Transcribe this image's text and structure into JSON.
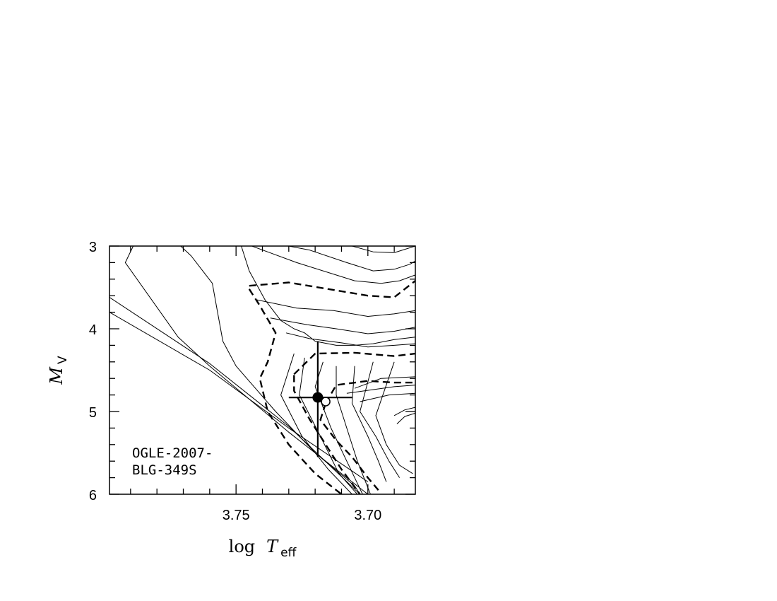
{
  "chart_data": {
    "type": "line",
    "title": "",
    "xlabel": "log T_eff",
    "ylabel": "M_V",
    "xlabel_parts": {
      "pre": "log",
      "var": "T",
      "sub": "eff"
    },
    "ylabel_parts": {
      "var": "M",
      "sub": "V"
    },
    "xlim": [
      3.798,
      3.682
    ],
    "ylim": [
      6,
      3
    ],
    "x_reversed": true,
    "y_reversed": true,
    "x_ticks": [
      {
        "v": 3.75,
        "label": "3.75"
      },
      {
        "v": 3.7,
        "label": "3.70"
      }
    ],
    "y_ticks": [
      {
        "v": 3,
        "label": "3"
      },
      {
        "v": 4,
        "label": "4"
      },
      {
        "v": 5,
        "label": "5"
      },
      {
        "v": 6,
        "label": "6"
      }
    ],
    "x_minor_step": 0.01,
    "y_minor_step": 0.2,
    "grid": false,
    "annotation": [
      "OGLE-2007-",
      "BLG-349S"
    ],
    "target": {
      "x": 3.719,
      "y": 4.83,
      "x_err": [
        3.73,
        3.706
      ],
      "y_err": [
        4.15,
        5.55
      ],
      "open_marker": {
        "x": 3.716,
        "y": 4.88
      }
    },
    "series": [
      {
        "style": "solid",
        "points": [
          [
            3.798,
            3.8
          ],
          [
            3.76,
            4.5
          ],
          [
            3.73,
            5.2
          ],
          [
            3.7,
            5.85
          ]
        ]
      },
      {
        "style": "solid",
        "points": [
          [
            3.798,
            3.62
          ],
          [
            3.76,
            4.42
          ],
          [
            3.73,
            5.18
          ],
          [
            3.703,
            6.0
          ]
        ]
      },
      {
        "style": "solid",
        "points": [
          [
            3.789,
            3.0
          ],
          [
            3.792,
            3.2
          ],
          [
            3.772,
            4.1
          ],
          [
            3.76,
            4.45
          ],
          [
            3.73,
            5.25
          ],
          [
            3.7,
            6.0
          ]
        ]
      },
      {
        "style": "solid",
        "points": [
          [
            3.771,
            3.0
          ],
          [
            3.767,
            3.12
          ],
          [
            3.759,
            3.45
          ],
          [
            3.757,
            3.8
          ],
          [
            3.755,
            4.15
          ],
          [
            3.75,
            4.45
          ],
          [
            3.735,
            5.0
          ],
          [
            3.72,
            5.5
          ],
          [
            3.705,
            5.9
          ],
          [
            3.703,
            6.0
          ]
        ]
      },
      {
        "style": "solid",
        "points": [
          [
            3.748,
            3.0
          ],
          [
            3.745,
            3.3
          ],
          [
            3.739,
            3.65
          ],
          [
            3.733,
            3.9
          ],
          [
            3.728,
            4.0
          ],
          [
            3.724,
            4.05
          ],
          [
            3.72,
            4.15
          ],
          [
            3.712,
            4.2
          ],
          [
            3.705,
            4.2
          ],
          [
            3.698,
            4.18
          ],
          [
            3.69,
            4.13
          ],
          [
            3.682,
            4.1
          ]
        ]
      },
      {
        "style": "solid",
        "points": [
          [
            3.706,
            3.0
          ],
          [
            3.698,
            3.07
          ],
          [
            3.69,
            3.08
          ],
          [
            3.682,
            3.0
          ]
        ]
      },
      {
        "style": "solid",
        "points": [
          [
            3.73,
            3.0
          ],
          [
            3.722,
            3.05
          ],
          [
            3.708,
            3.2
          ],
          [
            3.698,
            3.3
          ],
          [
            3.69,
            3.28
          ],
          [
            3.684,
            3.22
          ],
          [
            3.682,
            3.18
          ]
        ]
      },
      {
        "style": "solid",
        "points": [
          [
            3.744,
            3.0
          ],
          [
            3.727,
            3.2
          ],
          [
            3.705,
            3.42
          ],
          [
            3.695,
            3.45
          ],
          [
            3.688,
            3.42
          ],
          [
            3.682,
            3.35
          ]
        ]
      },
      {
        "style": "solid",
        "points": [
          [
            3.742,
            3.65
          ],
          [
            3.727,
            3.75
          ],
          [
            3.713,
            3.78
          ],
          [
            3.7,
            3.85
          ],
          [
            3.69,
            3.82
          ],
          [
            3.682,
            3.78
          ]
        ]
      },
      {
        "style": "solid",
        "points": [
          [
            3.737,
            3.87
          ],
          [
            3.723,
            3.95
          ],
          [
            3.712,
            4.0
          ],
          [
            3.7,
            4.06
          ],
          [
            3.69,
            4.03
          ],
          [
            3.682,
            3.98
          ]
        ]
      },
      {
        "style": "solid",
        "points": [
          [
            3.731,
            4.05
          ],
          [
            3.722,
            4.12
          ],
          [
            3.71,
            4.17
          ],
          [
            3.7,
            4.22
          ],
          [
            3.69,
            4.2
          ],
          [
            3.682,
            4.18
          ]
        ]
      },
      {
        "style": "solid",
        "points": [
          [
            3.728,
            4.3
          ],
          [
            3.733,
            4.8
          ],
          [
            3.725,
            5.3
          ],
          [
            3.715,
            5.7
          ],
          [
            3.706,
            6.0
          ]
        ]
      },
      {
        "style": "solid",
        "points": [
          [
            3.724,
            4.35
          ],
          [
            3.726,
            4.8
          ],
          [
            3.718,
            5.3
          ],
          [
            3.711,
            5.75
          ],
          [
            3.704,
            6.0
          ]
        ]
      },
      {
        "style": "solid",
        "points": [
          [
            3.717,
            4.4
          ],
          [
            3.72,
            4.7
          ],
          [
            3.714,
            5.2
          ],
          [
            3.708,
            5.6
          ],
          [
            3.702,
            6.0
          ]
        ]
      },
      {
        "style": "solid",
        "points": [
          [
            3.712,
            4.45
          ],
          [
            3.712,
            4.8
          ],
          [
            3.708,
            5.2
          ],
          [
            3.704,
            5.6
          ],
          [
            3.699,
            6.0
          ]
        ]
      },
      {
        "style": "solid",
        "points": [
          [
            3.705,
            4.45
          ],
          [
            3.706,
            4.9
          ],
          [
            3.7,
            5.3
          ],
          [
            3.696,
            5.6
          ],
          [
            3.693,
            5.85
          ]
        ]
      },
      {
        "style": "solid",
        "points": [
          [
            3.698,
            4.4
          ],
          [
            3.703,
            5.0
          ],
          [
            3.697,
            5.3
          ],
          [
            3.692,
            5.6
          ],
          [
            3.688,
            5.8
          ]
        ]
      },
      {
        "style": "solid",
        "points": [
          [
            3.69,
            4.4
          ],
          [
            3.697,
            5.05
          ],
          [
            3.693,
            5.4
          ],
          [
            3.688,
            5.65
          ],
          [
            3.683,
            5.75
          ]
        ]
      },
      {
        "style": "solid",
        "points": [
          [
            3.708,
            4.78
          ],
          [
            3.69,
            4.7
          ],
          [
            3.682,
            4.68
          ]
        ]
      },
      {
        "style": "solid",
        "points": [
          [
            3.705,
            4.72
          ],
          [
            3.695,
            4.6
          ],
          [
            3.682,
            4.58
          ]
        ]
      },
      {
        "style": "solid",
        "points": [
          [
            3.703,
            4.88
          ],
          [
            3.692,
            4.8
          ],
          [
            3.682,
            4.78
          ]
        ]
      },
      {
        "style": "solid",
        "points": [
          [
            3.69,
            5.05
          ],
          [
            3.686,
            4.98
          ],
          [
            3.682,
            4.95
          ]
        ]
      },
      {
        "style": "solid",
        "points": [
          [
            3.689,
            5.15
          ],
          [
            3.686,
            5.06
          ],
          [
            3.682,
            5.02
          ]
        ]
      },
      {
        "style": "dashed",
        "points": [
          [
            3.745,
            3.48
          ],
          [
            3.73,
            3.44
          ],
          [
            3.715,
            3.52
          ],
          [
            3.7,
            3.6
          ],
          [
            3.69,
            3.62
          ],
          [
            3.682,
            3.42
          ]
        ]
      },
      {
        "style": "dashed",
        "points": [
          [
            3.745,
            3.52
          ],
          [
            3.741,
            3.72
          ],
          [
            3.735,
            4.05
          ],
          [
            3.738,
            4.4
          ],
          [
            3.741,
            4.6
          ],
          [
            3.738,
            5.0
          ],
          [
            3.73,
            5.4
          ],
          [
            3.72,
            5.75
          ],
          [
            3.71,
            6.0
          ]
        ]
      },
      {
        "style": "dashed",
        "points": [
          [
            3.728,
            4.55
          ],
          [
            3.72,
            4.3
          ],
          [
            3.705,
            4.29
          ],
          [
            3.69,
            4.33
          ],
          [
            3.682,
            4.3
          ]
        ]
      },
      {
        "style": "dashed",
        "points": [
          [
            3.728,
            4.56
          ],
          [
            3.728,
            4.75
          ],
          [
            3.722,
            5.1
          ],
          [
            3.716,
            5.4
          ],
          [
            3.71,
            5.7
          ],
          [
            3.703,
            6.0
          ]
        ]
      },
      {
        "style": "dashed",
        "points": [
          [
            3.716,
            4.9
          ],
          [
            3.712,
            4.68
          ],
          [
            3.7,
            4.63
          ],
          [
            3.69,
            4.65
          ],
          [
            3.682,
            4.65
          ]
        ]
      },
      {
        "style": "dashed",
        "points": [
          [
            3.716,
            4.9
          ],
          [
            3.718,
            5.1
          ],
          [
            3.712,
            5.35
          ],
          [
            3.706,
            5.55
          ],
          [
            3.7,
            5.8
          ],
          [
            3.696,
            5.95
          ]
        ]
      }
    ]
  }
}
